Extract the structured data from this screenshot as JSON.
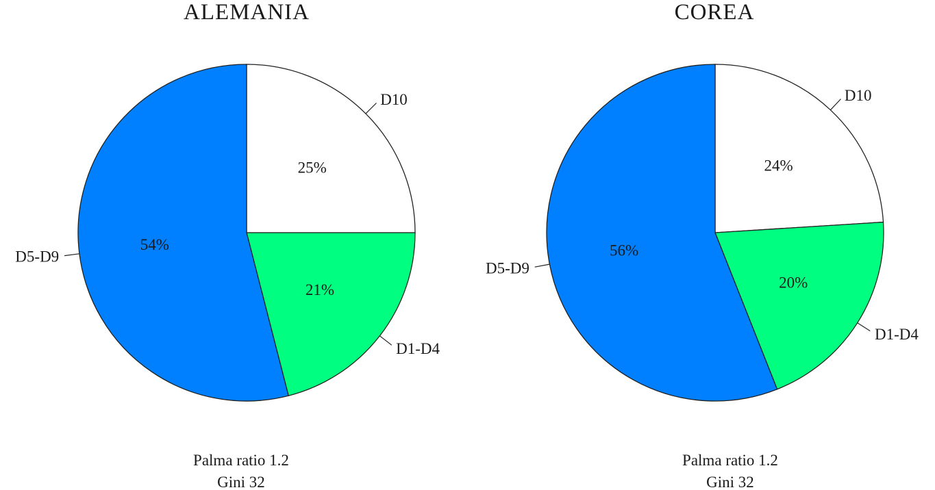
{
  "chart_data": [
    {
      "type": "pie",
      "title": "ALEMANIA",
      "slices": [
        {
          "label": "D10",
          "value": 25,
          "value_label": "25%",
          "color": "#ffffff"
        },
        {
          "label": "D1-D4",
          "value": 21,
          "value_label": "21%",
          "color": "#00ff80"
        },
        {
          "label": "D5-D9",
          "value": 54,
          "value_label": "54%",
          "color": "#0080ff"
        }
      ],
      "footer": [
        "Palma ratio 1.2",
        "Gini 32"
      ]
    },
    {
      "type": "pie",
      "title": "COREA",
      "slices": [
        {
          "label": "D10",
          "value": 24,
          "value_label": "24%",
          "color": "#ffffff"
        },
        {
          "label": "D1-D4",
          "value": 20,
          "value_label": "20%",
          "color": "#00ff80"
        },
        {
          "label": "D5-D9",
          "value": 56,
          "value_label": "56%",
          "color": "#0080ff"
        }
      ],
      "footer": [
        "Palma ratio 1.2",
        "Gini 32"
      ]
    }
  ]
}
